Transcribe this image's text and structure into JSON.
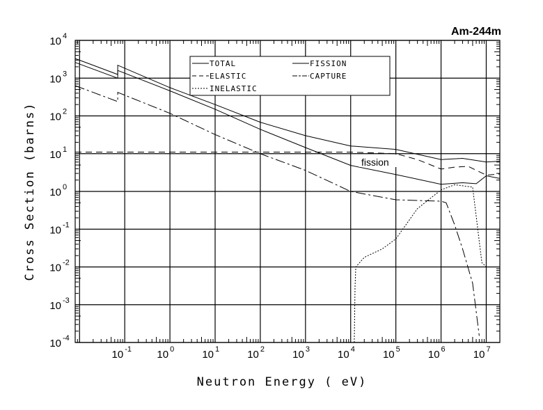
{
  "chart_data": {
    "type": "line",
    "title": "Am-244m",
    "xlabel": "Neutron Energy ( eV)",
    "ylabel": "Cross Section (barns)",
    "xscale": "log",
    "yscale": "log",
    "xlim": [
      0.008,
      20000000
    ],
    "ylim": [
      0.0001,
      10000
    ],
    "grid": true,
    "legend_position": "top-center",
    "tick_base": "10",
    "x_tick_exponents": [
      "-1",
      "0",
      "1",
      "2",
      "3",
      "4",
      "5",
      "6",
      "7"
    ],
    "y_tick_exponents": [
      "4",
      "3",
      "2",
      "1",
      "0",
      "-1",
      "-2",
      "-3",
      "-4"
    ],
    "annotation": "fission",
    "series": [
      {
        "name": "TOTAL",
        "style": "solid",
        "x": [
          0.008,
          0.07,
          0.07,
          1,
          10,
          100,
          1000,
          10000,
          100000,
          1000000,
          3000000,
          10000000,
          20000000
        ],
        "y": [
          3300,
          1250,
          2200,
          560,
          200,
          68,
          30,
          16,
          13,
          7,
          7.5,
          6,
          6.3
        ]
      },
      {
        "name": "FISSION",
        "style": "solid",
        "x": [
          0.008,
          0.07,
          0.07,
          1,
          10,
          100,
          1000,
          10000,
          100000,
          1000000,
          3000000,
          6000000,
          10000000,
          20000000
        ],
        "y": [
          2600,
          1000,
          1600,
          460,
          150,
          44,
          14.5,
          4.9,
          2.8,
          1.55,
          1.7,
          1.6,
          2.6,
          2.2
        ]
      },
      {
        "name": "ELASTIC",
        "style": "dashed",
        "x": [
          0.008,
          1000,
          10000,
          100000,
          300000,
          1000000,
          2000000,
          4000000,
          10000000,
          20000000
        ],
        "y": [
          11,
          11,
          11,
          10,
          7,
          3.9,
          4.4,
          4.6,
          2.7,
          2.9
        ]
      },
      {
        "name": "CAPTURE",
        "style": "dashdot",
        "x": [
          0.008,
          0.07,
          0.07,
          1,
          10,
          100,
          1000,
          10000,
          100000,
          1000000,
          1300000,
          2000000,
          3000000,
          5000000,
          7000000
        ],
        "y": [
          630,
          240,
          420,
          117,
          32,
          10,
          3.6,
          1.0,
          0.6,
          0.55,
          0.5,
          0.13,
          0.03,
          0.0037,
          0.00015
        ]
      },
      {
        "name": "INELASTIC",
        "style": "dotted",
        "x": [
          12000,
          12500,
          13000,
          20000,
          50000,
          100000,
          300000,
          1000000,
          2000000,
          5000000,
          6500000,
          8000000,
          10000000,
          20000000
        ],
        "y": [
          0.0001,
          0.003,
          0.01,
          0.018,
          0.03,
          0.055,
          0.35,
          1.1,
          1.5,
          1.3,
          0.1,
          0.013,
          0.01,
          0.01
        ]
      }
    ]
  }
}
